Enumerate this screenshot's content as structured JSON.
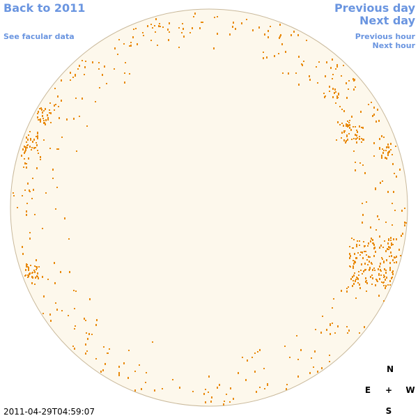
{
  "nav": {
    "back": "Back to 2011",
    "facular": "See facular data",
    "previous_day": "Previous day",
    "next_day": "Next day",
    "previous_hour": "Previous hour",
    "next_hour": "Next hour"
  },
  "compass": {
    "north": "N",
    "east": "E",
    "center": "+",
    "west": "W",
    "south": "S"
  },
  "timestamp": "2011-04-29T04:59:07"
}
